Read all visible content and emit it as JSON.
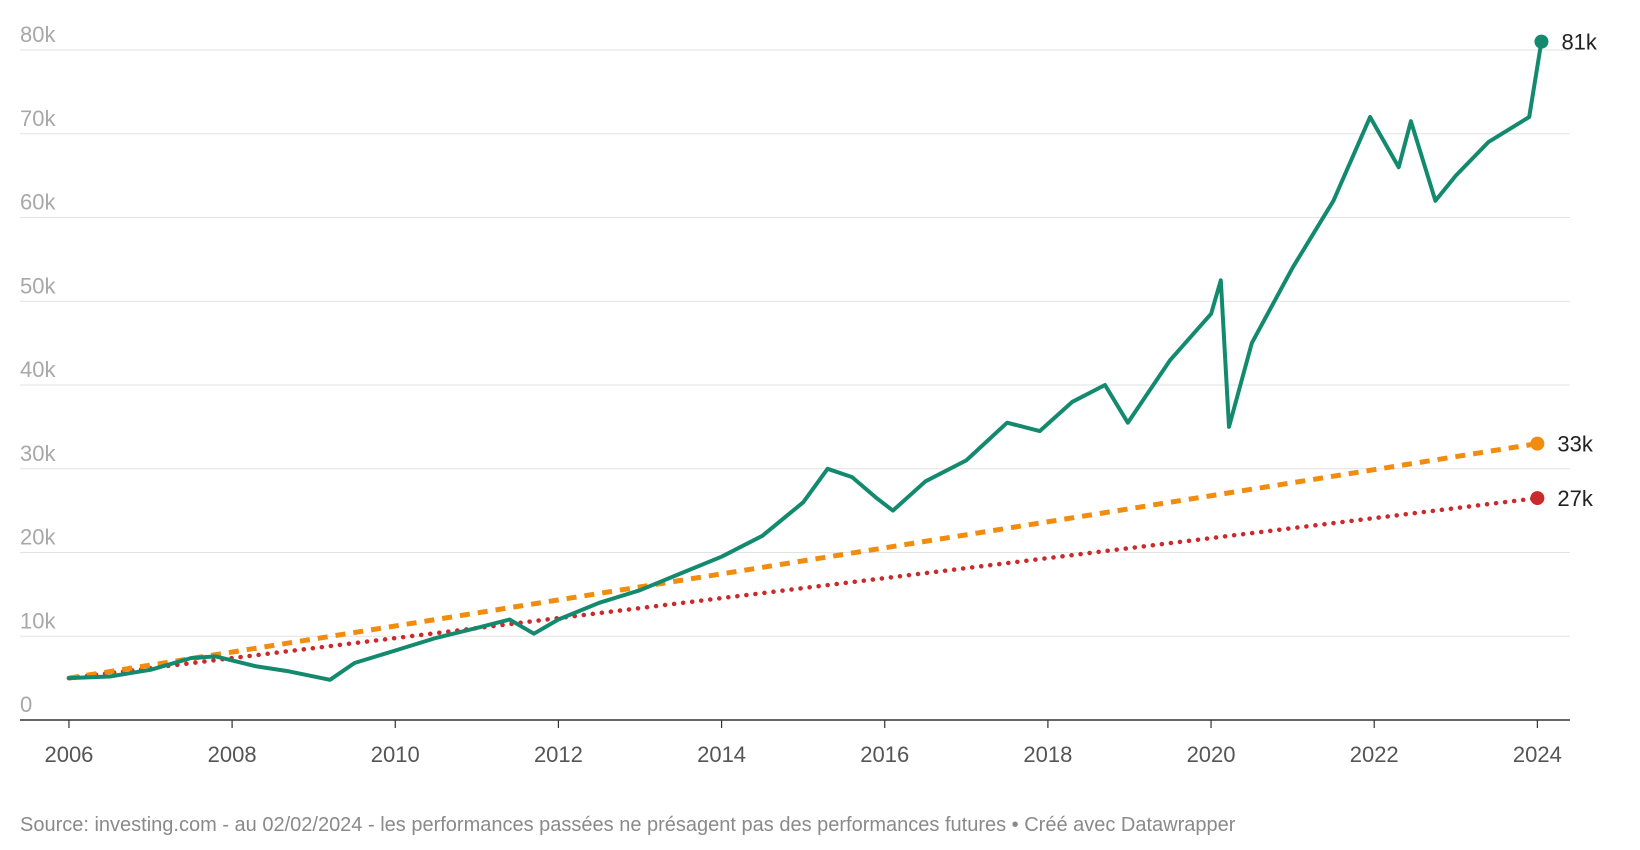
{
  "chart_data": {
    "type": "line",
    "title": "",
    "xlabel": "",
    "ylabel": "",
    "xlim": [
      2005.4,
      2024.4
    ],
    "ylim": [
      0,
      80000
    ],
    "grid": true,
    "x_ticks": [
      2006,
      2008,
      2010,
      2012,
      2014,
      2016,
      2018,
      2020,
      2022,
      2024
    ],
    "x_tick_labels": [
      "2006",
      "2008",
      "2010",
      "2012",
      "2014",
      "2016",
      "2018",
      "2020",
      "2022",
      "2024"
    ],
    "y_ticks": [
      0,
      10000,
      20000,
      30000,
      40000,
      50000,
      60000,
      70000,
      80000
    ],
    "y_tick_labels": [
      "0",
      "10k",
      "20k",
      "30k",
      "40k",
      "50k",
      "60k",
      "70k",
      "80k"
    ],
    "series": [
      {
        "color": "#138a6e",
        "style": "solid",
        "end_label": "81k",
        "x": [
          2006.0,
          2006.5,
          2007.0,
          2007.5,
          2007.8,
          2008.3,
          2008.7,
          2009.2,
          2009.5,
          2010.0,
          2010.5,
          2011.0,
          2011.4,
          2011.7,
          2012.0,
          2012.5,
          2013.0,
          2013.5,
          2014.0,
          2014.5,
          2015.0,
          2015.3,
          2015.6,
          2015.9,
          2016.1,
          2016.5,
          2017.0,
          2017.5,
          2017.9,
          2018.3,
          2018.7,
          2018.98,
          2019.5,
          2020.0,
          2020.12,
          2020.22,
          2020.5,
          2021.0,
          2021.5,
          2021.95,
          2022.3,
          2022.45,
          2022.75,
          2023.0,
          2023.4,
          2023.9,
          2024.05
        ],
        "y": [
          5000,
          5200,
          6000,
          7400,
          7600,
          6400,
          5800,
          4800,
          6800,
          8300,
          9800,
          11000,
          12000,
          10300,
          12000,
          14000,
          15500,
          17500,
          19500,
          22000,
          26000,
          30000,
          29000,
          26500,
          25000,
          28500,
          31000,
          35500,
          34500,
          38000,
          40000,
          35500,
          43000,
          48500,
          52500,
          35000,
          45000,
          54000,
          62000,
          72000,
          66000,
          71500,
          62000,
          65000,
          69000,
          72000,
          81000
        ]
      },
      {
        "color": "#f28c0f",
        "style": "dashed",
        "end_label": "33k",
        "x": [
          2006.0,
          2024.0
        ],
        "y": [
          5000,
          33000
        ]
      },
      {
        "color": "#cc2a2a",
        "style": "dotted",
        "end_label": "27k",
        "x": [
          2006.0,
          2024.0
        ],
        "y": [
          5000,
          26500
        ]
      }
    ]
  },
  "footer": {
    "source": "Source: investing.com - au 02/02/2024 - les performances passées ne présagent pas des performances futures • Créé avec Datawrapper"
  }
}
